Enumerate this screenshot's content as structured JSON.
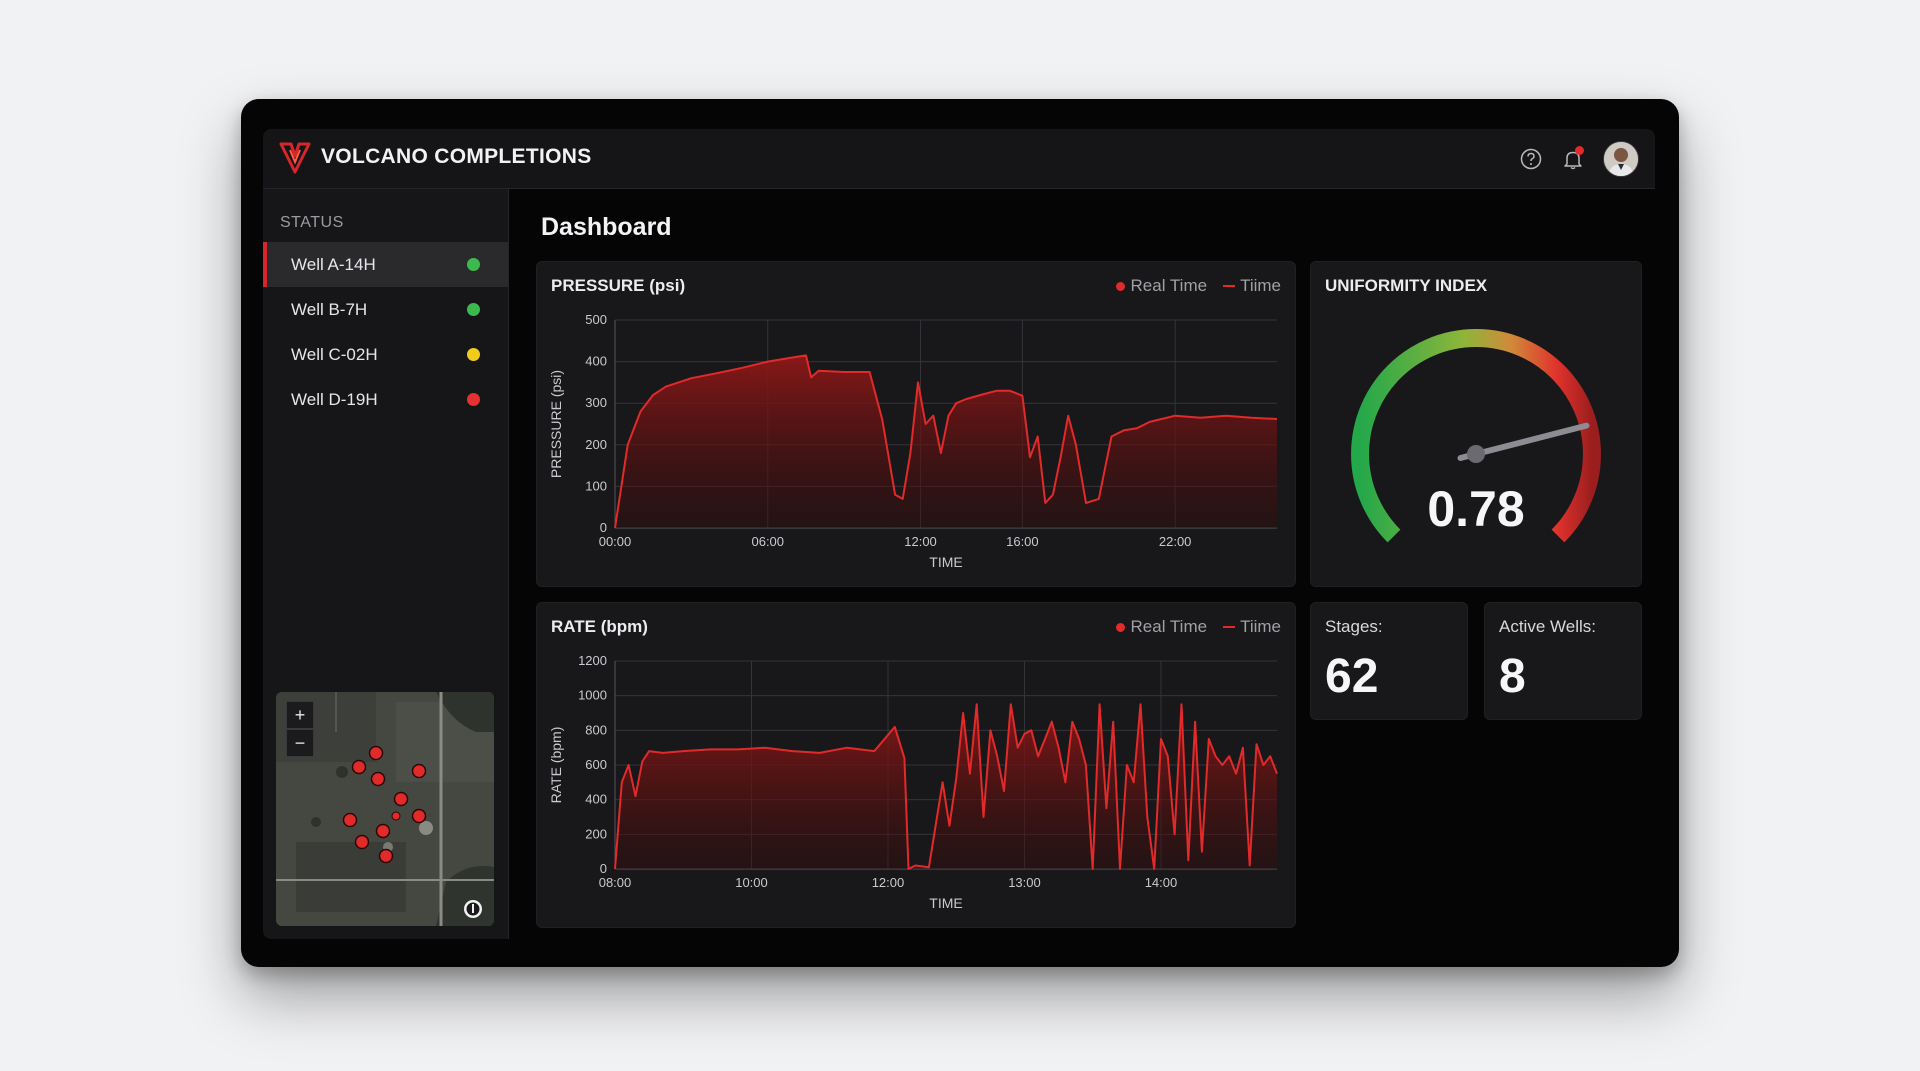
{
  "app": {
    "title": "VOLCANO COMPLETIONS",
    "icons": [
      "volcano-logo-icon",
      "help-icon",
      "bell-icon",
      "avatar"
    ],
    "accent": "#e12a2a"
  },
  "sidebar": {
    "status_label": "STATUS",
    "wells": [
      {
        "label": "Well A-14H",
        "status_color": "#3dba4e",
        "active": true
      },
      {
        "label": "Well B-7H",
        "status_color": "#3dba4e",
        "active": false
      },
      {
        "label": "Well C-02H",
        "status_color": "#f2cc1c",
        "active": false
      },
      {
        "label": "Well D-19H",
        "status_color": "#e23232",
        "active": false
      }
    ],
    "map": {
      "zoom_in": "+",
      "zoom_out": "−",
      "markers": 11
    }
  },
  "main": {
    "title": "Dashboard",
    "pressure_card": {
      "title": "PRESSURE (psi)",
      "legend_dot": "Real Time",
      "legend_line": "Tiime"
    },
    "rate_card": {
      "title": "RATE (bpm)",
      "legend_dot": "Real Time",
      "legend_line": "Tiime"
    },
    "uniformity": {
      "title": "UNIFORMITY INDEX",
      "value": "0.78",
      "fraction": 0.78
    },
    "stages": {
      "label": "Stages:",
      "value": "62"
    },
    "active_wells": {
      "label": "Active Wells:",
      "value": "8"
    }
  },
  "chart_data": [
    {
      "type": "area",
      "title": "PRESSURE (psi)",
      "xlabel": "TIME",
      "ylabel": "PRESSURE (psi)",
      "ylim": [
        0,
        500
      ],
      "yticks": [
        0,
        100,
        200,
        300,
        400,
        500
      ],
      "xlim": [
        0,
        26
      ],
      "xticks": [
        0,
        6,
        12,
        16,
        22
      ],
      "xtick_labels": [
        "00:00",
        "06:00",
        "12:00",
        "16:00",
        "22:00"
      ],
      "grid": true,
      "series": [
        {
          "name": "Real Time",
          "color": "#e12a2a",
          "x": [
            0,
            0.5,
            1,
            1.5,
            2,
            3,
            4,
            5,
            6,
            7,
            7.5,
            7.7,
            8,
            9,
            10,
            10.5,
            11,
            11.3,
            11.6,
            11.9,
            12.2,
            12.5,
            12.8,
            13.1,
            13.4,
            13.8,
            14.5,
            15,
            15.5,
            16,
            16.3,
            16.6,
            16.9,
            17.2,
            17.5,
            17.8,
            18.1,
            18.5,
            19,
            19.5,
            20,
            20.5,
            21,
            22,
            23,
            24,
            25,
            26
          ],
          "y": [
            0,
            200,
            280,
            320,
            340,
            360,
            372,
            385,
            400,
            410,
            415,
            362,
            378,
            375,
            375,
            260,
            80,
            70,
            180,
            350,
            250,
            270,
            180,
            270,
            300,
            310,
            322,
            330,
            330,
            318,
            170,
            220,
            60,
            80,
            170,
            270,
            200,
            60,
            70,
            220,
            235,
            240,
            255,
            270,
            265,
            270,
            265,
            262
          ]
        }
      ]
    },
    {
      "type": "area",
      "title": "RATE (bpm)",
      "xlabel": "TIME",
      "ylabel": "RATE (bpm)",
      "ylim": [
        0,
        1200
      ],
      "yticks": [
        0,
        200,
        400,
        600,
        800,
        1000,
        1200
      ],
      "xlim": [
        8,
        12.85
      ],
      "xticks": [
        8,
        9,
        10,
        11,
        12
      ],
      "xtick_labels": [
        "08:00",
        "10:00",
        "12:00",
        "13:00",
        "14:00"
      ],
      "grid": true,
      "series": [
        {
          "name": "Real Time",
          "color": "#e12a2a",
          "x": [
            8,
            8.05,
            8.1,
            8.15,
            8.2,
            8.25,
            8.35,
            8.5,
            8.7,
            8.9,
            9.1,
            9.3,
            9.5,
            9.7,
            9.9,
            10.05,
            10.12,
            10.15,
            10.2,
            10.3,
            10.4,
            10.45,
            10.5,
            10.55,
            10.6,
            10.65,
            10.7,
            10.75,
            10.8,
            10.85,
            10.9,
            10.95,
            11,
            11.05,
            11.1,
            11.15,
            11.2,
            11.25,
            11.3,
            11.35,
            11.4,
            11.45,
            11.5,
            11.55,
            11.6,
            11.65,
            11.7,
            11.75,
            11.8,
            11.85,
            11.9,
            11.95,
            12,
            12.05,
            12.1,
            12.15,
            12.2,
            12.25,
            12.3,
            12.35,
            12.4,
            12.45,
            12.5,
            12.55,
            12.6,
            12.65,
            12.7,
            12.75,
            12.8,
            12.85
          ],
          "y": [
            0,
            500,
            600,
            420,
            620,
            680,
            670,
            680,
            690,
            690,
            700,
            680,
            670,
            700,
            680,
            820,
            640,
            0,
            20,
            10,
            500,
            250,
            520,
            900,
            550,
            950,
            300,
            800,
            650,
            450,
            950,
            700,
            780,
            800,
            650,
            750,
            850,
            700,
            500,
            850,
            750,
            600,
            0,
            950,
            350,
            850,
            0,
            600,
            500,
            950,
            300,
            0,
            750,
            650,
            200,
            950,
            50,
            850,
            100,
            750,
            650,
            600,
            650,
            550,
            700,
            20,
            720,
            600,
            650,
            550
          ]
        }
      ]
    }
  ]
}
